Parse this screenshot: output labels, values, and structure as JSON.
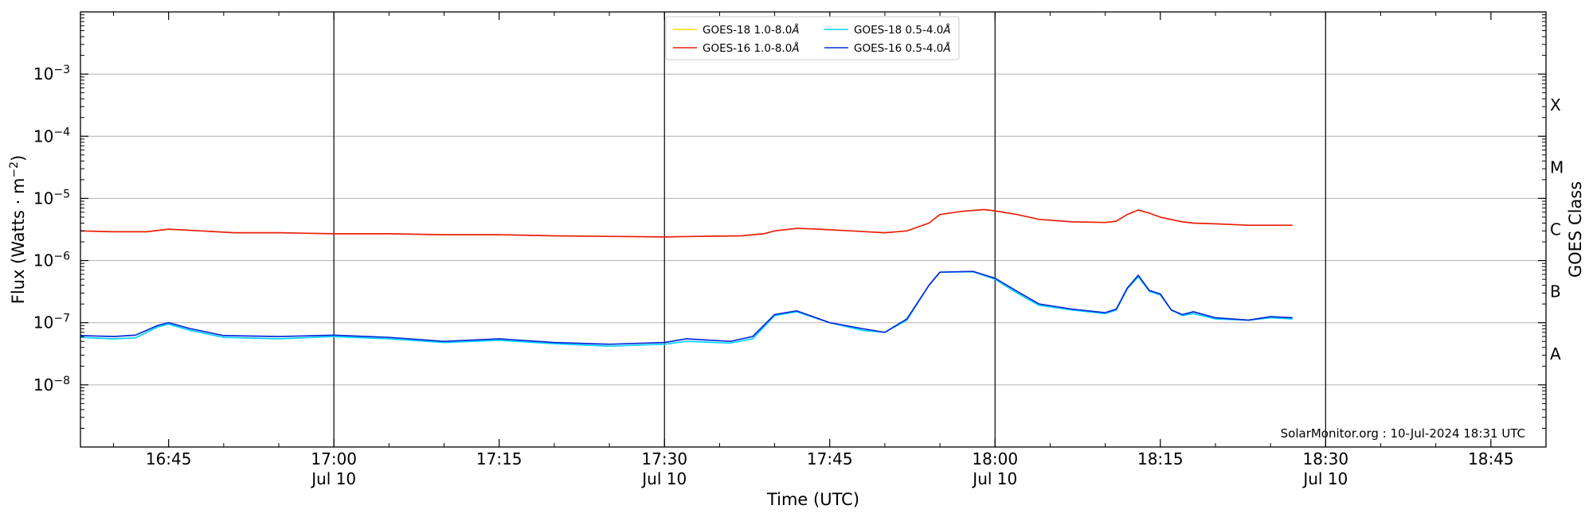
{
  "chart_data": {
    "type": "line",
    "xlabel": "Time (UTC)",
    "ylabel": "Flux (Watts · m",
    "ylabel_sup": "−2",
    "ylabel_close": ")",
    "right_label": "GOES Class",
    "yscale": "log",
    "ylim": [
      1e-09,
      0.01
    ],
    "x_start": "16:37",
    "x_end": "18:50",
    "x_ticks": [
      {
        "time": "16:45",
        "label": "16:45",
        "sub": ""
      },
      {
        "time": "17:00",
        "label": "17:00",
        "sub": "Jul 10"
      },
      {
        "time": "17:15",
        "label": "17:15",
        "sub": ""
      },
      {
        "time": "17:30",
        "label": "17:30",
        "sub": "Jul 10"
      },
      {
        "time": "17:45",
        "label": "17:45",
        "sub": ""
      },
      {
        "time": "18:00",
        "label": "18:00",
        "sub": "Jul 10"
      },
      {
        "time": "18:15",
        "label": "18:15",
        "sub": ""
      },
      {
        "time": "18:30",
        "label": "18:30",
        "sub": "Jul 10"
      },
      {
        "time": "18:45",
        "label": "18:45",
        "sub": ""
      }
    ],
    "day_lines": [
      "17:00",
      "17:30",
      "18:00",
      "18:30"
    ],
    "y_ticks": [
      {
        "value": 1e-08,
        "base": "10",
        "exp": "−8"
      },
      {
        "value": 1e-07,
        "base": "10",
        "exp": "−7"
      },
      {
        "value": 1e-06,
        "base": "10",
        "exp": "−6"
      },
      {
        "value": 1e-05,
        "base": "10",
        "exp": "−5"
      },
      {
        "value": 0.0001,
        "base": "10",
        "exp": "−4"
      },
      {
        "value": 0.001,
        "base": "10",
        "exp": "−3"
      }
    ],
    "goes_classes": [
      {
        "label": "A",
        "value": 3.16e-08
      },
      {
        "label": "B",
        "value": 3.16e-07
      },
      {
        "label": "C",
        "value": 3.16e-06
      },
      {
        "label": "M",
        "value": 3.16e-05
      },
      {
        "label": "X",
        "value": 0.000316
      }
    ],
    "grid": true,
    "legend_position": "top-center",
    "watermark": "SolarMonitor.org : 10-Jul-2024 18:31 UTC",
    "series": [
      {
        "name": "GOES-18 1.0-8.0",
        "name_unit": "Å",
        "color": "#ffd700",
        "visible": false,
        "points": []
      },
      {
        "name": "GOES-16 1.0-8.0",
        "name_unit": "Å",
        "color": "#e8200a",
        "points": [
          [
            "16:37",
            3e-06
          ],
          [
            "16:40",
            2.9e-06
          ],
          [
            "16:43",
            2.9e-06
          ],
          [
            "16:45",
            3.2e-06
          ],
          [
            "16:48",
            3e-06
          ],
          [
            "16:51",
            2.8e-06
          ],
          [
            "16:55",
            2.8e-06
          ],
          [
            "17:00",
            2.7e-06
          ],
          [
            "17:05",
            2.7e-06
          ],
          [
            "17:10",
            2.6e-06
          ],
          [
            "17:15",
            2.6e-06
          ],
          [
            "17:20",
            2.5e-06
          ],
          [
            "17:25",
            2.45e-06
          ],
          [
            "17:30",
            2.4e-06
          ],
          [
            "17:33",
            2.45e-06
          ],
          [
            "17:37",
            2.5e-06
          ],
          [
            "17:39",
            2.7e-06
          ],
          [
            "17:40",
            3e-06
          ],
          [
            "17:42",
            3.3e-06
          ],
          [
            "17:44",
            3.2e-06
          ],
          [
            "17:47",
            3e-06
          ],
          [
            "17:50",
            2.8e-06
          ],
          [
            "17:52",
            3e-06
          ],
          [
            "17:54",
            4e-06
          ],
          [
            "17:55",
            5.5e-06
          ],
          [
            "17:57",
            6.2e-06
          ],
          [
            "17:59",
            6.6e-06
          ],
          [
            "18:00",
            6.3e-06
          ],
          [
            "18:02",
            5.5e-06
          ],
          [
            "18:04",
            4.6e-06
          ],
          [
            "18:07",
            4.2e-06
          ],
          [
            "18:10",
            4.1e-06
          ],
          [
            "18:11",
            4.3e-06
          ],
          [
            "18:12",
            5.5e-06
          ],
          [
            "18:13",
            6.5e-06
          ],
          [
            "18:14",
            5.8e-06
          ],
          [
            "18:15",
            5e-06
          ],
          [
            "18:17",
            4.2e-06
          ],
          [
            "18:18",
            4e-06
          ],
          [
            "18:20",
            3.9e-06
          ],
          [
            "18:23",
            3.7e-06
          ],
          [
            "18:27",
            3.7e-06
          ]
        ]
      },
      {
        "name": "GOES-18 0.5-4.0",
        "name_unit": "Å",
        "color": "#00d4ff",
        "points": [
          [
            "16:37",
            5.8e-08
          ],
          [
            "16:40",
            5.5e-08
          ],
          [
            "16:42",
            5.7e-08
          ],
          [
            "16:44",
            8.5e-08
          ],
          [
            "16:45",
            9.5e-08
          ],
          [
            "16:47",
            7.5e-08
          ],
          [
            "16:50",
            5.8e-08
          ],
          [
            "16:55",
            5.5e-08
          ],
          [
            "17:00",
            6e-08
          ],
          [
            "17:05",
            5.5e-08
          ],
          [
            "17:10",
            4.8e-08
          ],
          [
            "17:15",
            5.2e-08
          ],
          [
            "17:20",
            4.6e-08
          ],
          [
            "17:25",
            4.2e-08
          ],
          [
            "17:30",
            4.5e-08
          ],
          [
            "17:32",
            5e-08
          ],
          [
            "17:36",
            4.7e-08
          ],
          [
            "17:38",
            5.5e-08
          ],
          [
            "17:40",
            1.3e-07
          ],
          [
            "17:42",
            1.5e-07
          ],
          [
            "17:45",
            1e-07
          ],
          [
            "17:48",
            7.5e-08
          ],
          [
            "17:50",
            7e-08
          ],
          [
            "17:52",
            1.1e-07
          ],
          [
            "17:54",
            4e-07
          ],
          [
            "17:55",
            6.5e-07
          ],
          [
            "17:58",
            6.6e-07
          ],
          [
            "18:00",
            5e-07
          ],
          [
            "18:02",
            3e-07
          ],
          [
            "18:04",
            1.9e-07
          ],
          [
            "18:07",
            1.6e-07
          ],
          [
            "18:10",
            1.4e-07
          ],
          [
            "18:11",
            1.6e-07
          ],
          [
            "18:12",
            3.5e-07
          ],
          [
            "18:13",
            5.5e-07
          ],
          [
            "18:14",
            3.2e-07
          ],
          [
            "18:15",
            2.8e-07
          ],
          [
            "18:16",
            1.6e-07
          ],
          [
            "18:17",
            1.3e-07
          ],
          [
            "18:18",
            1.4e-07
          ],
          [
            "18:20",
            1.15e-07
          ],
          [
            "18:23",
            1.1e-07
          ],
          [
            "18:25",
            1.2e-07
          ],
          [
            "18:27",
            1.15e-07
          ]
        ]
      },
      {
        "name": "GOES-16 0.5-4.0",
        "name_unit": "Å",
        "color": "#0a2bd6",
        "points": [
          [
            "16:37",
            6.2e-08
          ],
          [
            "16:40",
            6e-08
          ],
          [
            "16:42",
            6.3e-08
          ],
          [
            "16:44",
            9e-08
          ],
          [
            "16:45",
            1e-07
          ],
          [
            "16:47",
            8e-08
          ],
          [
            "16:50",
            6.2e-08
          ],
          [
            "16:55",
            6e-08
          ],
          [
            "17:00",
            6.3e-08
          ],
          [
            "17:05",
            5.8e-08
          ],
          [
            "17:10",
            5e-08
          ],
          [
            "17:15",
            5.5e-08
          ],
          [
            "17:20",
            4.8e-08
          ],
          [
            "17:25",
            4.5e-08
          ],
          [
            "17:30",
            4.8e-08
          ],
          [
            "17:32",
            5.5e-08
          ],
          [
            "17:36",
            5e-08
          ],
          [
            "17:38",
            6e-08
          ],
          [
            "17:40",
            1.35e-07
          ],
          [
            "17:42",
            1.55e-07
          ],
          [
            "17:45",
            1e-07
          ],
          [
            "17:48",
            8e-08
          ],
          [
            "17:50",
            7e-08
          ],
          [
            "17:52",
            1.15e-07
          ],
          [
            "17:54",
            4e-07
          ],
          [
            "17:55",
            6.5e-07
          ],
          [
            "17:58",
            6.7e-07
          ],
          [
            "18:00",
            5.2e-07
          ],
          [
            "18:02",
            3.2e-07
          ],
          [
            "18:04",
            2e-07
          ],
          [
            "18:07",
            1.65e-07
          ],
          [
            "18:10",
            1.45e-07
          ],
          [
            "18:11",
            1.65e-07
          ],
          [
            "18:12",
            3.6e-07
          ],
          [
            "18:13",
            5.8e-07
          ],
          [
            "18:14",
            3.3e-07
          ],
          [
            "18:15",
            2.9e-07
          ],
          [
            "18:16",
            1.6e-07
          ],
          [
            "18:17",
            1.35e-07
          ],
          [
            "18:18",
            1.5e-07
          ],
          [
            "18:20",
            1.2e-07
          ],
          [
            "18:23",
            1.1e-07
          ],
          [
            "18:25",
            1.25e-07
          ],
          [
            "18:27",
            1.2e-07
          ]
        ]
      }
    ]
  }
}
